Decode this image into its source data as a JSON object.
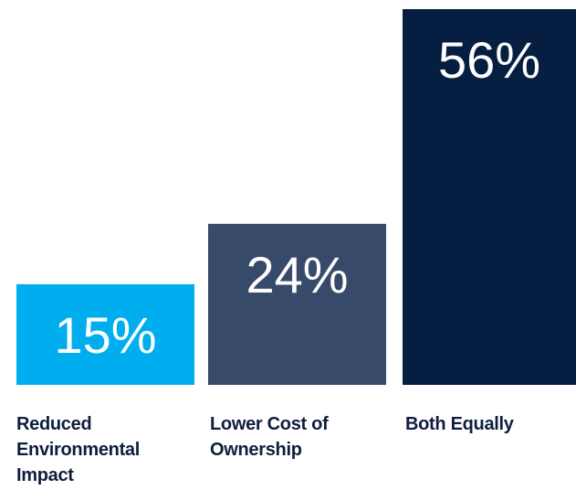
{
  "chart_data": {
    "type": "bar",
    "categories": [
      "Reduced Environmental Impact",
      "Lower Cost of Ownership",
      "Both Equally"
    ],
    "values": [
      15,
      24,
      56
    ],
    "value_labels": [
      "15%",
      "24%",
      "56%"
    ],
    "title": "",
    "xlabel": "",
    "ylabel": "",
    "ylim": [
      0,
      56
    ],
    "grid": false,
    "legend": "none",
    "colors": [
      "#00aeef",
      "#384a6a",
      "#051e42"
    ],
    "label_color": "#0f1e3c"
  }
}
